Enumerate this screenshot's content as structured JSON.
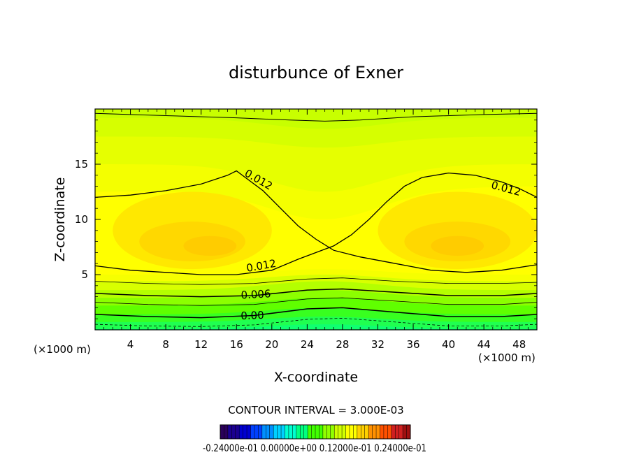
{
  "chart_data": {
    "type": "contour",
    "title": "disturbunce of Exner",
    "xlabel": "X-coordinate",
    "ylabel": "Z-coordinate",
    "x_unit": "(×1000 m)",
    "x_unit_right": "(×1000 m)",
    "xlim": [
      0,
      50
    ],
    "ylim": [
      0,
      20
    ],
    "x_ticks": [
      4,
      8,
      12,
      16,
      20,
      24,
      28,
      32,
      36,
      40,
      44,
      48
    ],
    "y_ticks": [
      5,
      10,
      15
    ],
    "contour_interval_text": "CONTOUR INTERVAL = 3.000E-03",
    "contour_labels": [
      {
        "text": "0.012",
        "x": 18.5,
        "y": 13.6,
        "angle": 30
      },
      {
        "text": "0.012",
        "x": 46.5,
        "y": 12.8,
        "angle": 15
      },
      {
        "text": "0.012",
        "x": 18.8,
        "y": 5.8,
        "angle": -10
      },
      {
        "text": "0.006",
        "x": 18.2,
        "y": 3.2,
        "angle": -3
      },
      {
        "text": "0.00",
        "x": 17.8,
        "y": 1.3,
        "angle": -2
      }
    ],
    "colorbar": {
      "labels_text": "-0.24000e-01 0.00000e+00 0.12000e-01 0.24000e-01",
      "range": [
        -0.024,
        0.024
      ]
    },
    "colors": {
      "line": "#000000",
      "background": "#ffffff"
    }
  }
}
